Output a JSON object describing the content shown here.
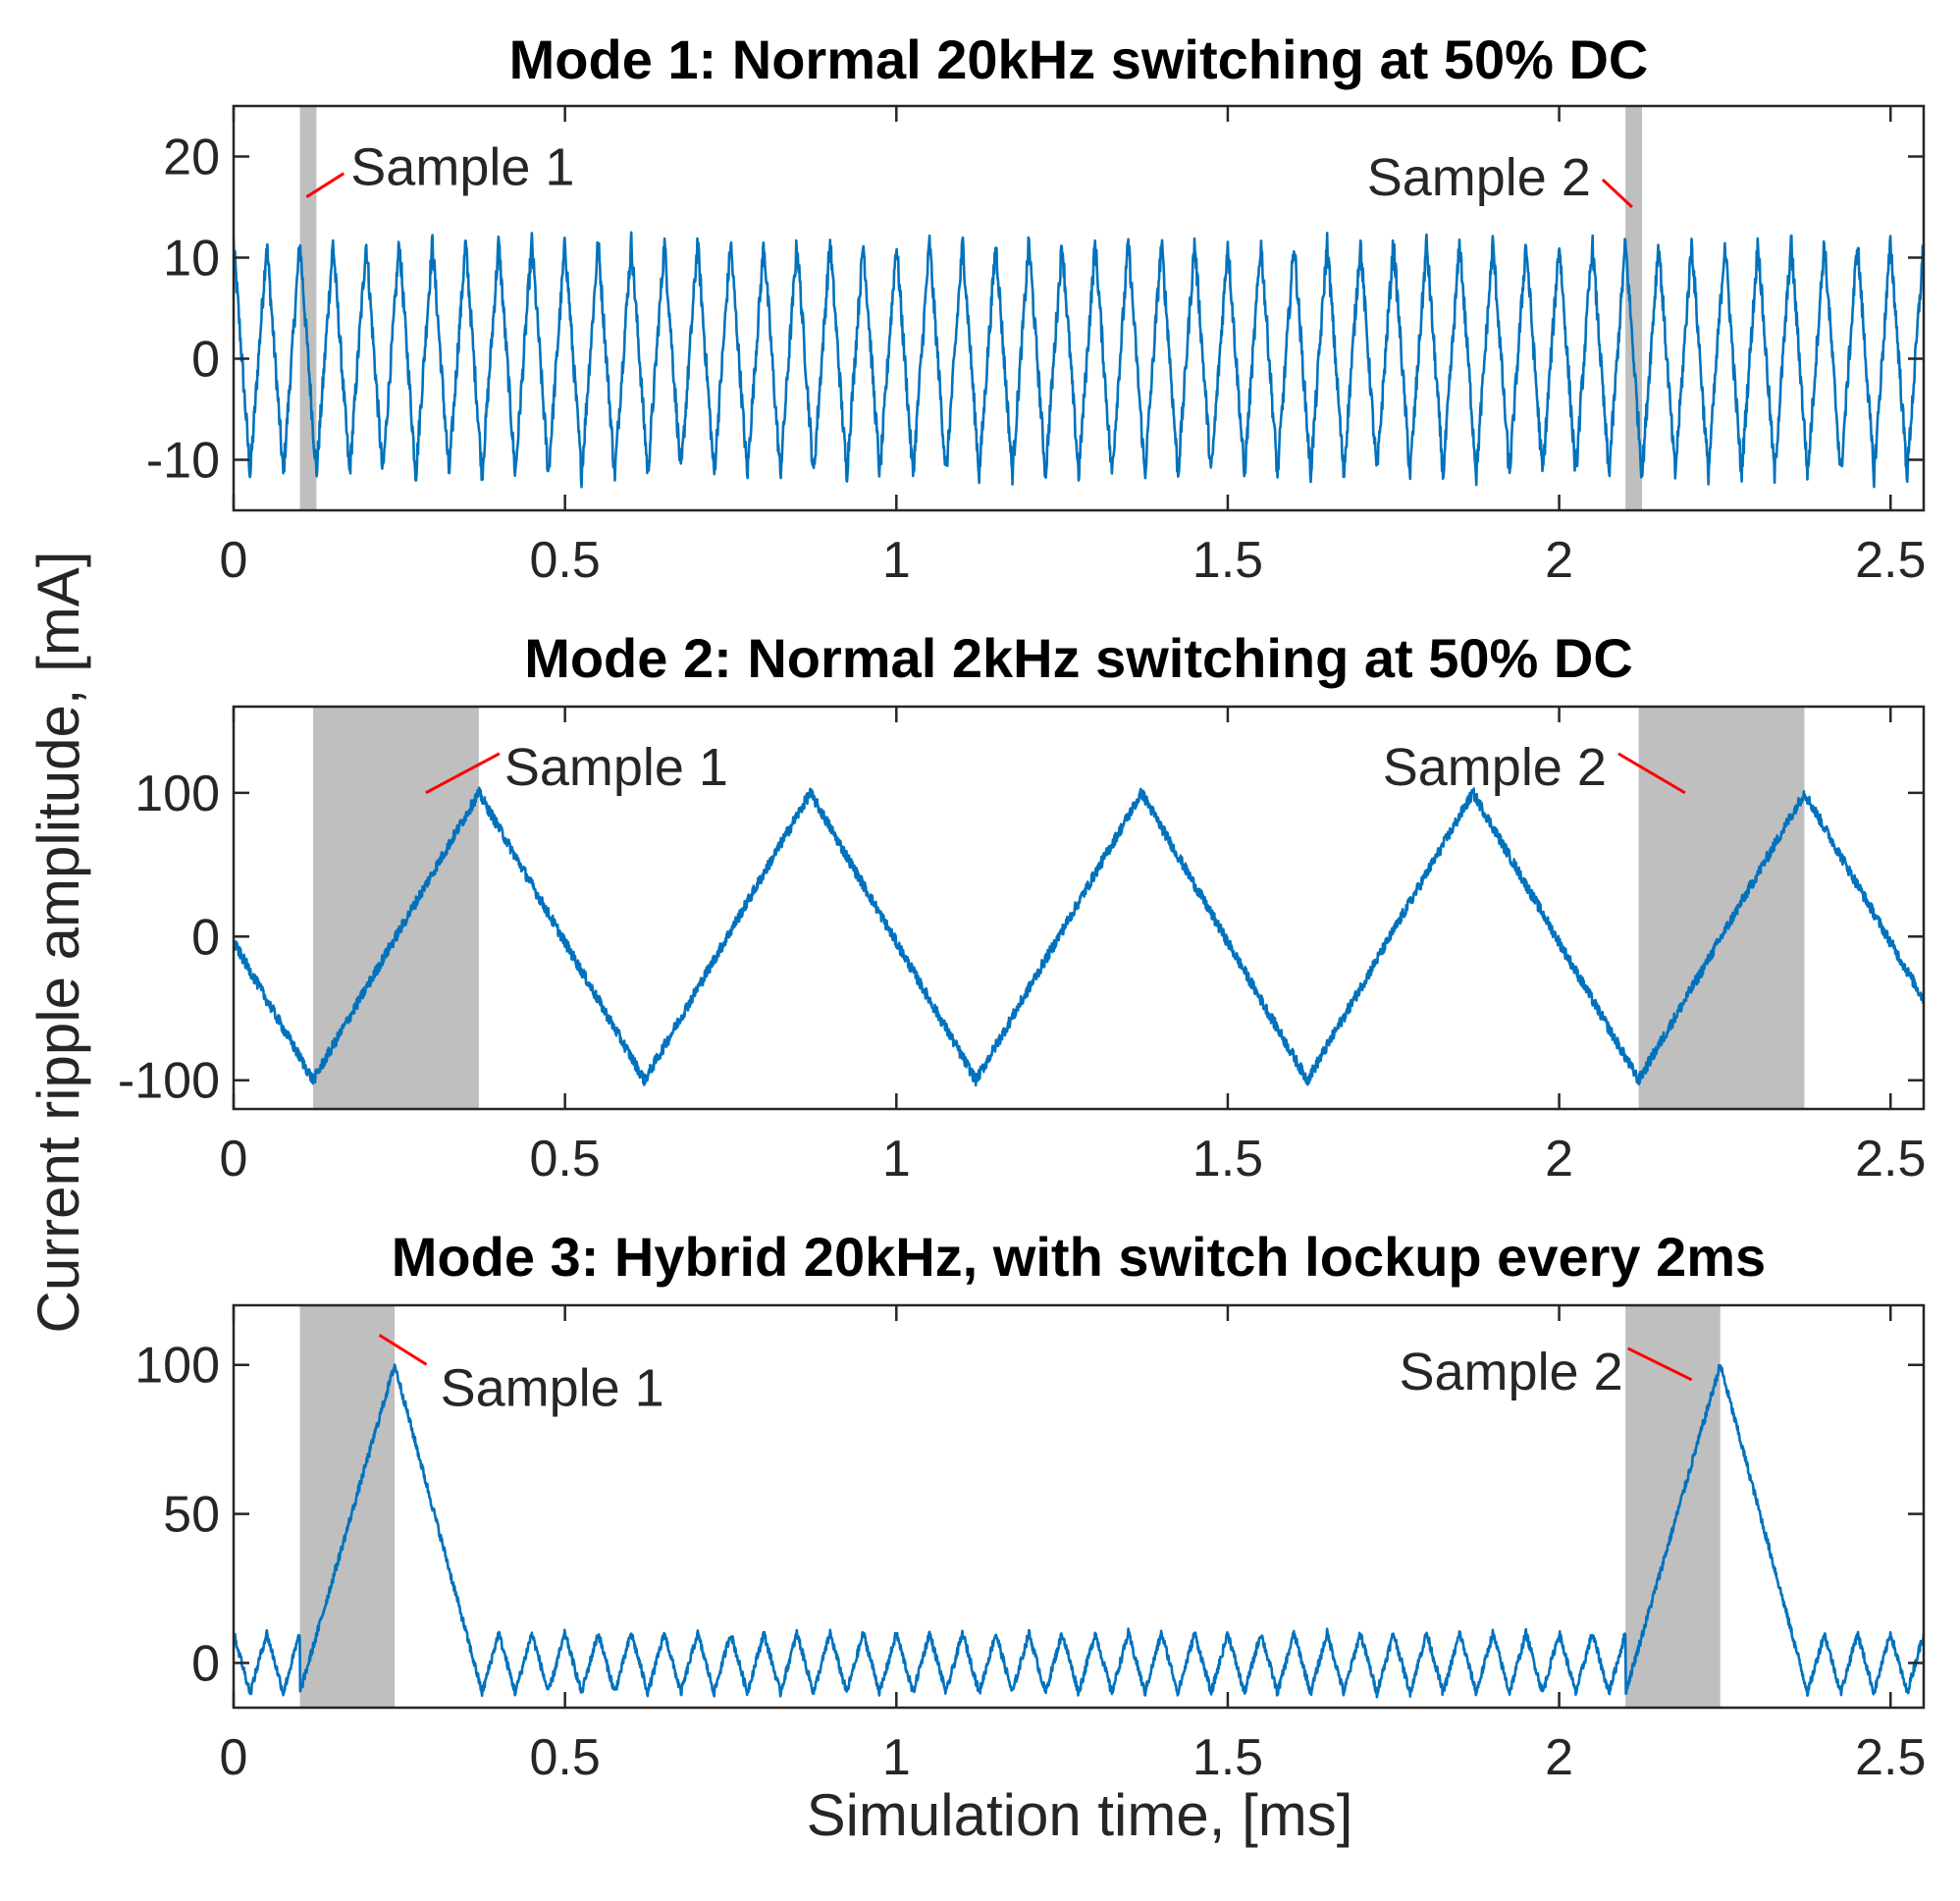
{
  "figure": {
    "ylabel": "Current ripple amplitude, [mA]",
    "xlabel": "Simulation time, [ms]",
    "colors": {
      "line": "#0072BD",
      "shade": "#BFBFBF",
      "pointer": "#FF0000",
      "axis": "#262626"
    }
  },
  "chart_data": [
    {
      "type": "line",
      "title": "Mode 1: Normal 20kHz switching at 50% DC",
      "xlim": [
        0,
        2.55
      ],
      "ylim": [
        -15,
        25
      ],
      "xticks": [
        0,
        0.5,
        1,
        1.5,
        2,
        2.5
      ],
      "xtick_labels": [
        "0",
        "0.5",
        "1",
        "1.5",
        "2",
        "2.5"
      ],
      "yticks": [
        -10,
        0,
        10,
        20
      ],
      "ytick_labels": [
        "-10",
        "0",
        "10",
        "20"
      ],
      "shaded_regions": [
        [
          0.1,
          0.125
        ],
        [
          2.1,
          2.125
        ]
      ],
      "series": [
        {
          "name": "ripple",
          "waveform": "triangle",
          "frequency_khz": 20,
          "amplitude": 11.5,
          "offset": 0,
          "phase_ms": -0.025,
          "noise": 1.2
        }
      ],
      "annotations": [
        {
          "text": "Sample 1",
          "x": 0.11,
          "y": 16
        },
        {
          "text": "Sample 2",
          "x": 2.11,
          "y": 15
        }
      ]
    },
    {
      "type": "line",
      "title": "Mode 2: Normal 2kHz switching at 50% DC",
      "xlim": [
        0,
        2.55
      ],
      "ylim": [
        -120,
        160
      ],
      "xticks": [
        0,
        0.5,
        1,
        1.5,
        2,
        2.5
      ],
      "xtick_labels": [
        "0",
        "0.5",
        "1",
        "1.5",
        "2",
        "2.5"
      ],
      "yticks": [
        -100,
        0,
        100
      ],
      "ytick_labels": [
        "-100",
        "0",
        "100"
      ],
      "shaded_regions": [
        [
          0.12,
          0.37
        ],
        [
          2.12,
          2.37
        ]
      ],
      "series": [
        {
          "name": "ripple",
          "waveform": "triangle",
          "frequency_khz": 2,
          "amplitude": 100,
          "offset": 0,
          "phase_ms": -0.38,
          "noise": 4
        }
      ],
      "annotations": [
        {
          "text": "Sample 1",
          "x": 0.29,
          "y": 100
        },
        {
          "text": "Sample 2",
          "x": 2.19,
          "y": 100
        }
      ]
    },
    {
      "type": "line",
      "title": "Mode 3: Hybrid 20kHz, with switch lockup every 2ms",
      "xlim": [
        0,
        2.55
      ],
      "ylim": [
        -15,
        120
      ],
      "xticks": [
        0,
        0.5,
        1,
        1.5,
        2,
        2.5
      ],
      "xtick_labels": [
        "0",
        "0.5",
        "1",
        "1.5",
        "2",
        "2.5"
      ],
      "yticks": [
        0,
        50,
        100
      ],
      "ytick_labels": [
        "0",
        "50",
        "100"
      ],
      "shaded_regions": [
        [
          0.1,
          0.243
        ],
        [
          2.1,
          2.243
        ]
      ],
      "series": [
        {
          "name": "ripple",
          "waveform": "triangle",
          "frequency_khz": 20,
          "amplitude": 10,
          "offset": 0,
          "phase_ms": -0.025,
          "noise": 1.5,
          "lockup_pulses": [
            {
              "start": 0.1,
              "peak_time": 0.243,
              "end": 0.375,
              "peak": 100,
              "base": -10
            },
            {
              "start": 2.1,
              "peak_time": 2.243,
              "end": 2.375,
              "peak": 100,
              "base": -10
            }
          ]
        }
      ],
      "annotations": [
        {
          "text": "Sample 1",
          "x": 0.22,
          "y": 110
        },
        {
          "text": "Sample 2",
          "x": 2.2,
          "y": 95
        }
      ]
    }
  ]
}
